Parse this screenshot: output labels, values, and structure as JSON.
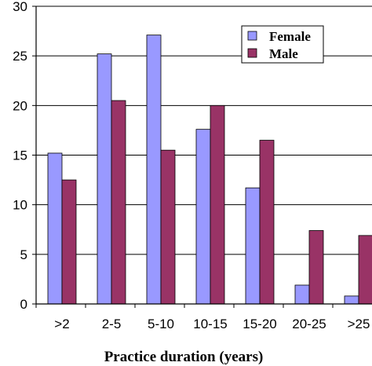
{
  "chart_data": {
    "type": "bar",
    "title": "",
    "xlabel": "Practice duration (years)",
    "ylabel": "",
    "categories": [
      ">2",
      "2-5",
      "5-10",
      "10-15",
      "15-20",
      "20-25",
      ">25"
    ],
    "series": [
      {
        "name": "Female",
        "values": [
          15.2,
          25.2,
          27.1,
          17.6,
          11.7,
          1.9,
          0.8
        ],
        "color": "#9999ff"
      },
      {
        "name": "Male",
        "values": [
          12.5,
          20.5,
          15.5,
          20.0,
          16.5,
          7.4,
          6.9
        ],
        "color": "#993366"
      }
    ],
    "ylim": [
      0,
      30
    ],
    "yticks": [
      0,
      5,
      10,
      15,
      20,
      25,
      30
    ],
    "grid": true,
    "legend": "top-right"
  }
}
